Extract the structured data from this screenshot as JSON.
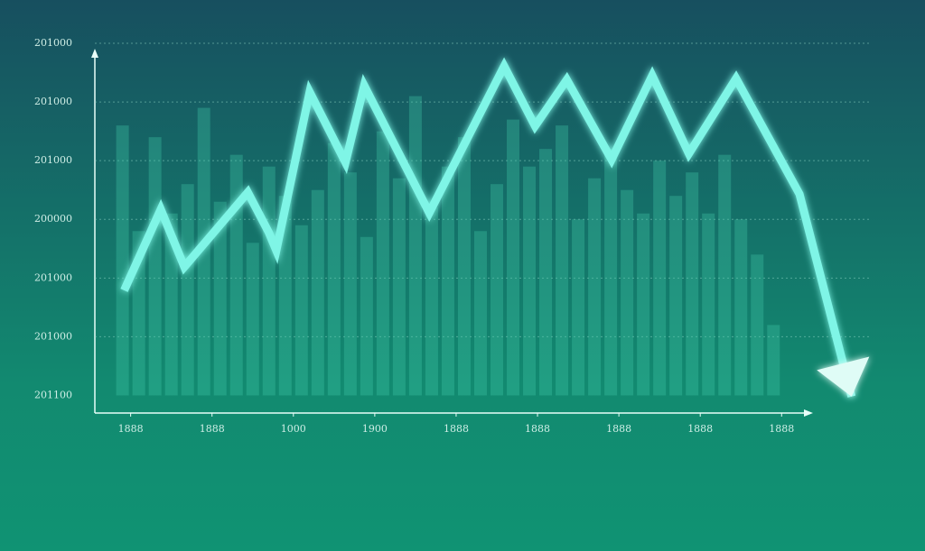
{
  "chart_data": {
    "type": "line",
    "xlim": [
      -0.44,
      8.33
    ],
    "xticks": [
      {
        "value": 0,
        "label": "1888"
      },
      {
        "value": 1,
        "label": "1888"
      },
      {
        "value": 2,
        "label": "1000"
      },
      {
        "value": 3,
        "label": "1900"
      },
      {
        "value": 4,
        "label": "1888"
      },
      {
        "value": 5,
        "label": "1888"
      },
      {
        "value": 6,
        "label": "1888"
      },
      {
        "value": 7,
        "label": "1888"
      },
      {
        "value": 8,
        "label": "1888"
      }
    ],
    "ylim": [
      -0.3,
      6.2
    ],
    "yticks": [
      {
        "value": 0,
        "label": "201100"
      },
      {
        "value": 1,
        "label": "201000"
      },
      {
        "value": 2,
        "label": "201000"
      },
      {
        "value": 3,
        "label": "200000"
      },
      {
        "value": 4,
        "label": "201000"
      },
      {
        "value": 5,
        "label": "201000"
      },
      {
        "value": 6,
        "label": "201000"
      }
    ],
    "grid": true,
    "series": [
      {
        "type": "bar",
        "color": "#3fc7a6",
        "x": [
          -0.1,
          0.1,
          0.3,
          0.5,
          0.7,
          0.9,
          1.1,
          1.3,
          1.5,
          1.7,
          1.9,
          2.1,
          2.3,
          2.5,
          2.7,
          2.9,
          3.1,
          3.3,
          3.5,
          3.7,
          3.9,
          4.1,
          4.3,
          4.5,
          4.7,
          4.9,
          5.1,
          5.3,
          5.5,
          5.7,
          5.9,
          6.1,
          6.3,
          6.5,
          6.7,
          6.9,
          7.1,
          7.3,
          7.5,
          7.7,
          7.9
        ],
        "values": [
          4.6,
          2.8,
          4.4,
          3.1,
          3.6,
          4.9,
          3.3,
          4.1,
          2.6,
          3.9,
          3.4,
          2.9,
          3.5,
          4.3,
          3.8,
          2.7,
          4.5,
          3.7,
          5.1,
          3.2,
          3.9,
          4.4,
          2.8,
          3.6,
          4.7,
          3.9,
          4.2,
          4.6,
          3.0,
          3.7,
          4.2,
          3.5,
          3.1,
          4.0,
          3.4,
          3.8,
          3.1,
          4.1,
          3.0,
          2.4,
          1.2
        ]
      },
      {
        "type": "line",
        "color": "#7ff5e6",
        "x": [
          -0.08,
          0.37,
          0.66,
          1.44,
          1.7,
          1.79,
          2.2,
          2.64,
          2.87,
          3.67,
          4.59,
          4.97,
          5.36,
          5.91,
          6.41,
          6.86,
          7.44,
          8.22,
          8.86
        ],
        "values": [
          1.79,
          3.17,
          2.19,
          3.46,
          2.77,
          2.47,
          5.17,
          3.97,
          5.28,
          3.11,
          5.61,
          4.59,
          5.38,
          4.02,
          5.45,
          4.12,
          5.4,
          3.43,
          -0.02
        ]
      }
    ]
  }
}
